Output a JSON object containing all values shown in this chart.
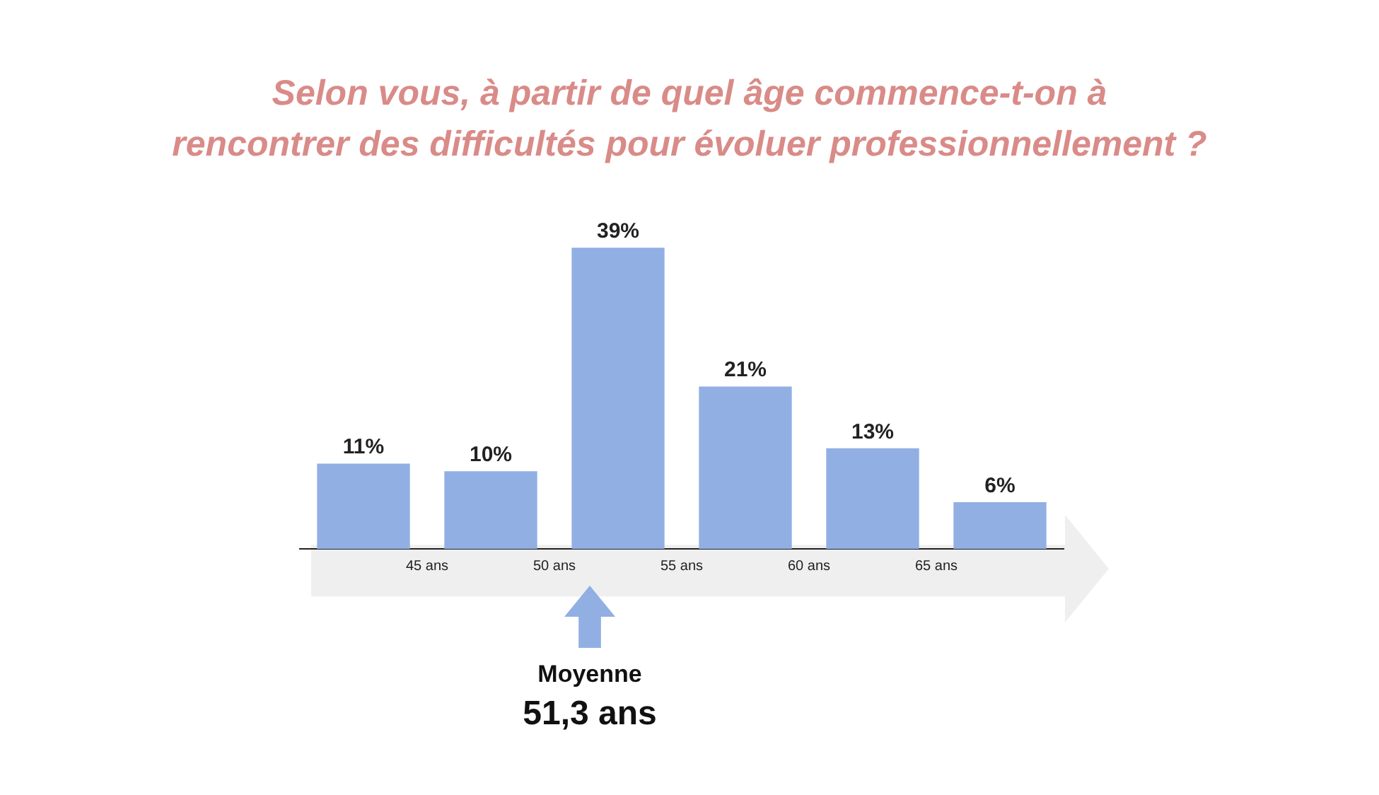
{
  "chart_data": {
    "type": "bar",
    "title": "Selon vous, à partir de quel âge commence-t-on à\nrencontrer des difficultés pour évoluer professionnellement ?",
    "x": [
      42.5,
      47.5,
      52.5,
      57.5,
      62.5,
      67.5
    ],
    "values": [
      11,
      10,
      39,
      21,
      13,
      6
    ],
    "value_labels": [
      "11%",
      "10%",
      "39%",
      "21%",
      "13%",
      "6%"
    ],
    "color": "#91afe3",
    "xlim": [
      40,
      70
    ],
    "xticks": [
      {
        "value": 45,
        "label": "45 ans"
      },
      {
        "value": 50,
        "label": "50 ans"
      },
      {
        "value": 55,
        "label": "55 ans"
      },
      {
        "value": 60,
        "label": "60 ans"
      },
      {
        "value": 65,
        "label": "65 ans"
      }
    ],
    "tick_labels": "x",
    "grid": false,
    "legend": false,
    "annotations": [
      "Moyenne",
      "51,3 ans"
    ]
  }
}
